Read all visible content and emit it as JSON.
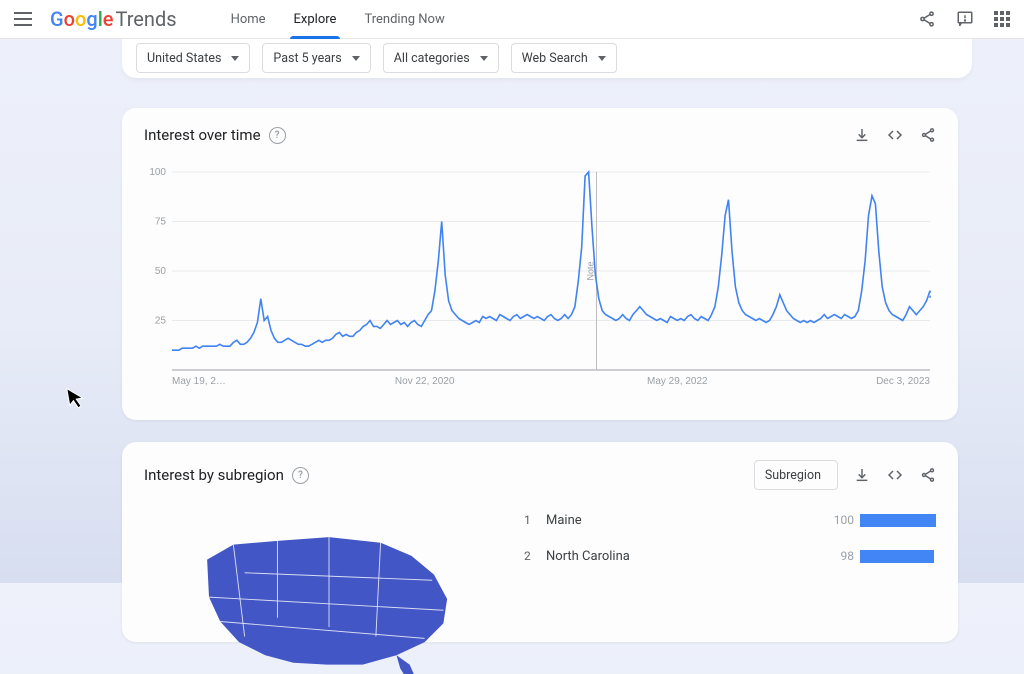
{
  "header": {
    "logo_google": "Google",
    "logo_trends": "Trends",
    "nav": {
      "home": "Home",
      "explore": "Explore",
      "trending": "Trending Now"
    },
    "active_tab": "explore"
  },
  "filters": {
    "geo": "United States",
    "time": "Past 5 years",
    "category": "All categories",
    "search_type": "Web Search"
  },
  "chart": {
    "title": "Interest over time",
    "type": "line",
    "ylim": [
      0,
      100
    ],
    "yticks": [
      25,
      50,
      75,
      100
    ],
    "xlabels": [
      "May 19, 2…",
      "Nov 22, 2020",
      "May 29, 2022",
      "Dec 3, 2023"
    ],
    "note": "Note",
    "colors": {
      "series": "#4183f2",
      "grid": "#e8eaed",
      "axis": "#9aa0a6",
      "label": "#9aa0a6"
    },
    "series": [
      10,
      10,
      10,
      11,
      11,
      11,
      11,
      12,
      11,
      12,
      12,
      12,
      12,
      12,
      13,
      12,
      12,
      12,
      14,
      15,
      13,
      13,
      14,
      16,
      19,
      24,
      36,
      25,
      27,
      20,
      16,
      14,
      14,
      15,
      16,
      15,
      14,
      13,
      13,
      12,
      12,
      13,
      14,
      15,
      14,
      15,
      15,
      16,
      18,
      19,
      17,
      18,
      17,
      17,
      19,
      20,
      22,
      23,
      25,
      22,
      22,
      21,
      23,
      25,
      23,
      24,
      25,
      23,
      24,
      22,
      24,
      25,
      23,
      22,
      25,
      28,
      30,
      40,
      55,
      75,
      48,
      35,
      30,
      28,
      26,
      25,
      24,
      23,
      24,
      25,
      24,
      27,
      26,
      27,
      26,
      25,
      28,
      27,
      26,
      25,
      27,
      28,
      26,
      27,
      28,
      27,
      26,
      27,
      26,
      25,
      27,
      28,
      26,
      25,
      26,
      28,
      26,
      28,
      32,
      45,
      62,
      98,
      100,
      72,
      48,
      36,
      30,
      28,
      27,
      26,
      25,
      26,
      28,
      26,
      25,
      28,
      30,
      32,
      30,
      28,
      27,
      26,
      25,
      26,
      25,
      24,
      27,
      26,
      25,
      26,
      25,
      27,
      28,
      26,
      25,
      27,
      26,
      25,
      28,
      32,
      42,
      58,
      78,
      86,
      60,
      42,
      34,
      30,
      28,
      27,
      26,
      25,
      26,
      25,
      24,
      25,
      28,
      32,
      38,
      34,
      30,
      28,
      26,
      25,
      24,
      25,
      24,
      25,
      24,
      25,
      26,
      28,
      26,
      27,
      28,
      27,
      26,
      28,
      27,
      26,
      27,
      30,
      40,
      55,
      78,
      88,
      84,
      60,
      42,
      34,
      30,
      28,
      27,
      26,
      25,
      28,
      32,
      30,
      28,
      30,
      32,
      35,
      40
    ]
  },
  "region": {
    "title": "Interest by subregion",
    "selector_label": "Subregion",
    "bar_color": "#4285f4",
    "max": 100,
    "rows": [
      {
        "rank": "1",
        "name": "Maine",
        "value": 100
      },
      {
        "rank": "2",
        "name": "North Carolina",
        "value": 98
      }
    ]
  }
}
